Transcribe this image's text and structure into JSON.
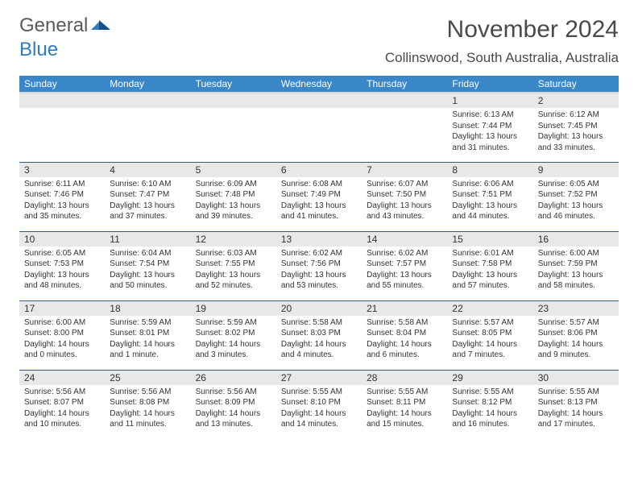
{
  "logo": {
    "part1": "General",
    "part2": "Blue"
  },
  "title": "November 2024",
  "location": "Collinswood, South Australia, Australia",
  "colors": {
    "header_bg": "#3a87c8",
    "header_text": "#ffffff",
    "daynum_bg": "#e8e8e8",
    "row_border": "#355d87",
    "text": "#333333",
    "logo_gray": "#5a5a5a",
    "logo_blue": "#2f7dc0"
  },
  "day_names": [
    "Sunday",
    "Monday",
    "Tuesday",
    "Wednesday",
    "Thursday",
    "Friday",
    "Saturday"
  ],
  "weeks": [
    [
      null,
      null,
      null,
      null,
      null,
      {
        "n": "1",
        "sr": "Sunrise: 6:13 AM",
        "ss": "Sunset: 7:44 PM",
        "dl1": "Daylight: 13 hours",
        "dl2": "and 31 minutes."
      },
      {
        "n": "2",
        "sr": "Sunrise: 6:12 AM",
        "ss": "Sunset: 7:45 PM",
        "dl1": "Daylight: 13 hours",
        "dl2": "and 33 minutes."
      }
    ],
    [
      {
        "n": "3",
        "sr": "Sunrise: 6:11 AM",
        "ss": "Sunset: 7:46 PM",
        "dl1": "Daylight: 13 hours",
        "dl2": "and 35 minutes."
      },
      {
        "n": "4",
        "sr": "Sunrise: 6:10 AM",
        "ss": "Sunset: 7:47 PM",
        "dl1": "Daylight: 13 hours",
        "dl2": "and 37 minutes."
      },
      {
        "n": "5",
        "sr": "Sunrise: 6:09 AM",
        "ss": "Sunset: 7:48 PM",
        "dl1": "Daylight: 13 hours",
        "dl2": "and 39 minutes."
      },
      {
        "n": "6",
        "sr": "Sunrise: 6:08 AM",
        "ss": "Sunset: 7:49 PM",
        "dl1": "Daylight: 13 hours",
        "dl2": "and 41 minutes."
      },
      {
        "n": "7",
        "sr": "Sunrise: 6:07 AM",
        "ss": "Sunset: 7:50 PM",
        "dl1": "Daylight: 13 hours",
        "dl2": "and 43 minutes."
      },
      {
        "n": "8",
        "sr": "Sunrise: 6:06 AM",
        "ss": "Sunset: 7:51 PM",
        "dl1": "Daylight: 13 hours",
        "dl2": "and 44 minutes."
      },
      {
        "n": "9",
        "sr": "Sunrise: 6:05 AM",
        "ss": "Sunset: 7:52 PM",
        "dl1": "Daylight: 13 hours",
        "dl2": "and 46 minutes."
      }
    ],
    [
      {
        "n": "10",
        "sr": "Sunrise: 6:05 AM",
        "ss": "Sunset: 7:53 PM",
        "dl1": "Daylight: 13 hours",
        "dl2": "and 48 minutes."
      },
      {
        "n": "11",
        "sr": "Sunrise: 6:04 AM",
        "ss": "Sunset: 7:54 PM",
        "dl1": "Daylight: 13 hours",
        "dl2": "and 50 minutes."
      },
      {
        "n": "12",
        "sr": "Sunrise: 6:03 AM",
        "ss": "Sunset: 7:55 PM",
        "dl1": "Daylight: 13 hours",
        "dl2": "and 52 minutes."
      },
      {
        "n": "13",
        "sr": "Sunrise: 6:02 AM",
        "ss": "Sunset: 7:56 PM",
        "dl1": "Daylight: 13 hours",
        "dl2": "and 53 minutes."
      },
      {
        "n": "14",
        "sr": "Sunrise: 6:02 AM",
        "ss": "Sunset: 7:57 PM",
        "dl1": "Daylight: 13 hours",
        "dl2": "and 55 minutes."
      },
      {
        "n": "15",
        "sr": "Sunrise: 6:01 AM",
        "ss": "Sunset: 7:58 PM",
        "dl1": "Daylight: 13 hours",
        "dl2": "and 57 minutes."
      },
      {
        "n": "16",
        "sr": "Sunrise: 6:00 AM",
        "ss": "Sunset: 7:59 PM",
        "dl1": "Daylight: 13 hours",
        "dl2": "and 58 minutes."
      }
    ],
    [
      {
        "n": "17",
        "sr": "Sunrise: 6:00 AM",
        "ss": "Sunset: 8:00 PM",
        "dl1": "Daylight: 14 hours",
        "dl2": "and 0 minutes."
      },
      {
        "n": "18",
        "sr": "Sunrise: 5:59 AM",
        "ss": "Sunset: 8:01 PM",
        "dl1": "Daylight: 14 hours",
        "dl2": "and 1 minute."
      },
      {
        "n": "19",
        "sr": "Sunrise: 5:59 AM",
        "ss": "Sunset: 8:02 PM",
        "dl1": "Daylight: 14 hours",
        "dl2": "and 3 minutes."
      },
      {
        "n": "20",
        "sr": "Sunrise: 5:58 AM",
        "ss": "Sunset: 8:03 PM",
        "dl1": "Daylight: 14 hours",
        "dl2": "and 4 minutes."
      },
      {
        "n": "21",
        "sr": "Sunrise: 5:58 AM",
        "ss": "Sunset: 8:04 PM",
        "dl1": "Daylight: 14 hours",
        "dl2": "and 6 minutes."
      },
      {
        "n": "22",
        "sr": "Sunrise: 5:57 AM",
        "ss": "Sunset: 8:05 PM",
        "dl1": "Daylight: 14 hours",
        "dl2": "and 7 minutes."
      },
      {
        "n": "23",
        "sr": "Sunrise: 5:57 AM",
        "ss": "Sunset: 8:06 PM",
        "dl1": "Daylight: 14 hours",
        "dl2": "and 9 minutes."
      }
    ],
    [
      {
        "n": "24",
        "sr": "Sunrise: 5:56 AM",
        "ss": "Sunset: 8:07 PM",
        "dl1": "Daylight: 14 hours",
        "dl2": "and 10 minutes."
      },
      {
        "n": "25",
        "sr": "Sunrise: 5:56 AM",
        "ss": "Sunset: 8:08 PM",
        "dl1": "Daylight: 14 hours",
        "dl2": "and 11 minutes."
      },
      {
        "n": "26",
        "sr": "Sunrise: 5:56 AM",
        "ss": "Sunset: 8:09 PM",
        "dl1": "Daylight: 14 hours",
        "dl2": "and 13 minutes."
      },
      {
        "n": "27",
        "sr": "Sunrise: 5:55 AM",
        "ss": "Sunset: 8:10 PM",
        "dl1": "Daylight: 14 hours",
        "dl2": "and 14 minutes."
      },
      {
        "n": "28",
        "sr": "Sunrise: 5:55 AM",
        "ss": "Sunset: 8:11 PM",
        "dl1": "Daylight: 14 hours",
        "dl2": "and 15 minutes."
      },
      {
        "n": "29",
        "sr": "Sunrise: 5:55 AM",
        "ss": "Sunset: 8:12 PM",
        "dl1": "Daylight: 14 hours",
        "dl2": "and 16 minutes."
      },
      {
        "n": "30",
        "sr": "Sunrise: 5:55 AM",
        "ss": "Sunset: 8:13 PM",
        "dl1": "Daylight: 14 hours",
        "dl2": "and 17 minutes."
      }
    ]
  ]
}
